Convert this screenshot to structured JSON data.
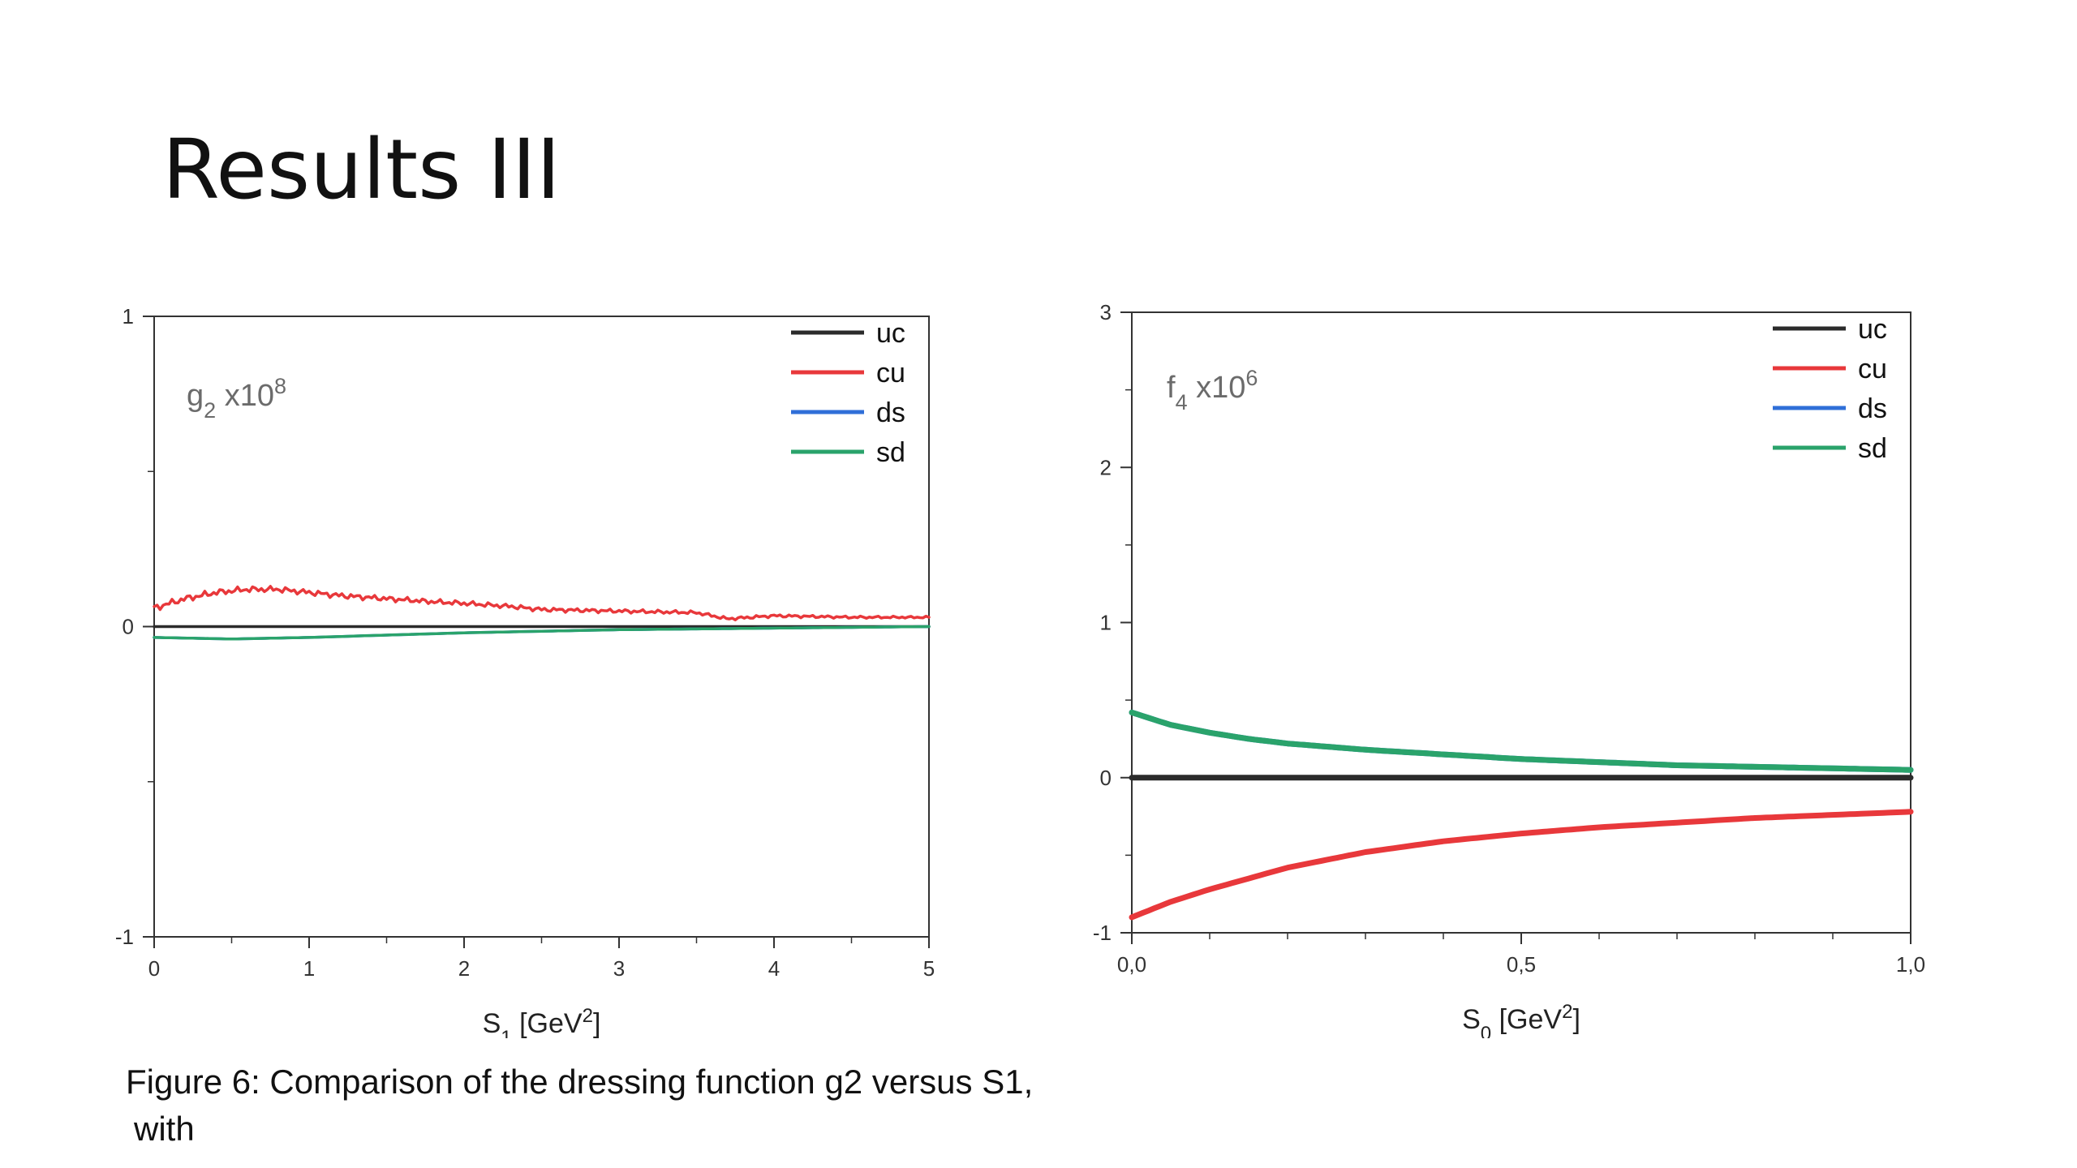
{
  "slide": {
    "title": "Results III",
    "caption_lines": [
      "Figure 6: Comparison of the dressing function g2 versus S1,",
      "with"
    ]
  },
  "chart_data": [
    {
      "type": "line",
      "annotation": {
        "base": "g",
        "sub": "2",
        "mid": " x10",
        "sup": "8"
      },
      "xlabel": {
        "base": "S",
        "sub": "1",
        "mid": " [GeV",
        "sup": "2",
        "end": "]"
      },
      "ylabel": "",
      "xlim": [
        0,
        5
      ],
      "ylim": [
        -1,
        1
      ],
      "x_ticks": [
        0,
        1,
        2,
        3,
        4,
        5
      ],
      "x_tick_labels": [
        "0",
        "1",
        "2",
        "3",
        "4",
        "5"
      ],
      "y_ticks": [
        -1,
        0,
        1
      ],
      "y_tick_labels": [
        "-1",
        "0",
        "1"
      ],
      "grid": false,
      "legend_position": "top-right",
      "series": [
        {
          "name": "uc",
          "color": "#2b2b2b",
          "noise": 0,
          "x": [
            0,
            5
          ],
          "y": [
            0,
            0
          ]
        },
        {
          "name": "cu",
          "color": "#e8383b",
          "noise": 0.012,
          "x": [
            0,
            0.2,
            0.4,
            0.6,
            0.8,
            1.0,
            1.2,
            1.5,
            1.8,
            2.0,
            2.3,
            2.5,
            3.0,
            3.5,
            3.7,
            4.0,
            4.5,
            5.0
          ],
          "y": [
            0.06,
            0.09,
            0.11,
            0.12,
            0.12,
            0.11,
            0.1,
            0.09,
            0.08,
            0.075,
            0.065,
            0.055,
            0.05,
            0.045,
            0.025,
            0.035,
            0.03,
            0.03
          ]
        },
        {
          "name": "ds",
          "color": "#2f6fd8",
          "noise": 0,
          "x": [
            0,
            0.5,
            1,
            2,
            3,
            4,
            5
          ],
          "y": [
            -0.035,
            -0.04,
            -0.035,
            -0.02,
            -0.01,
            -0.005,
            0
          ]
        },
        {
          "name": "sd",
          "color": "#2aa36b",
          "noise": 0,
          "x": [
            0,
            0.5,
            1,
            2,
            3,
            4,
            5
          ],
          "y": [
            -0.035,
            -0.04,
            -0.035,
            -0.02,
            -0.01,
            -0.005,
            0
          ]
        }
      ]
    },
    {
      "type": "line",
      "annotation": {
        "base": "f",
        "sub": "4",
        "mid": " x10",
        "sup": "6"
      },
      "xlabel": {
        "base": "S",
        "sub": "0",
        "mid": " [GeV",
        "sup": "2",
        "end": "]"
      },
      "ylabel": "",
      "xlim": [
        0,
        1
      ],
      "ylim": [
        -1,
        3
      ],
      "x_ticks": [
        0,
        0.5,
        1
      ],
      "x_tick_labels": [
        "0,0",
        "0,5",
        "1,0"
      ],
      "y_ticks": [
        -1,
        0,
        1,
        2,
        3
      ],
      "y_tick_labels": [
        "-1",
        "0",
        "1",
        "2",
        "3"
      ],
      "grid": false,
      "legend_position": "top-right",
      "series": [
        {
          "name": "uc",
          "color": "#2b2b2b",
          "noise": 0,
          "x": [
            0,
            1
          ],
          "y": [
            0,
            0
          ]
        },
        {
          "name": "cu",
          "color": "#e8383b",
          "noise": 0,
          "x": [
            0,
            0.05,
            0.1,
            0.15,
            0.2,
            0.3,
            0.4,
            0.5,
            0.6,
            0.7,
            0.8,
            0.9,
            1.0
          ],
          "y": [
            -0.9,
            -0.8,
            -0.72,
            -0.65,
            -0.58,
            -0.48,
            -0.41,
            -0.36,
            -0.32,
            -0.29,
            -0.26,
            -0.24,
            -0.22
          ]
        },
        {
          "name": "ds",
          "color": "#2f6fd8",
          "noise": 0,
          "x": [
            0,
            0.05,
            0.1,
            0.15,
            0.2,
            0.3,
            0.4,
            0.5,
            0.6,
            0.7,
            0.8,
            0.9,
            1.0
          ],
          "y": [
            0.42,
            0.34,
            0.29,
            0.25,
            0.22,
            0.18,
            0.15,
            0.12,
            0.1,
            0.08,
            0.07,
            0.06,
            0.05
          ]
        },
        {
          "name": "sd",
          "color": "#2aa36b",
          "noise": 0,
          "x": [
            0,
            0.05,
            0.1,
            0.15,
            0.2,
            0.3,
            0.4,
            0.5,
            0.6,
            0.7,
            0.8,
            0.9,
            1.0
          ],
          "y": [
            0.42,
            0.34,
            0.29,
            0.25,
            0.22,
            0.18,
            0.15,
            0.12,
            0.1,
            0.08,
            0.07,
            0.06,
            0.05
          ]
        }
      ]
    }
  ]
}
